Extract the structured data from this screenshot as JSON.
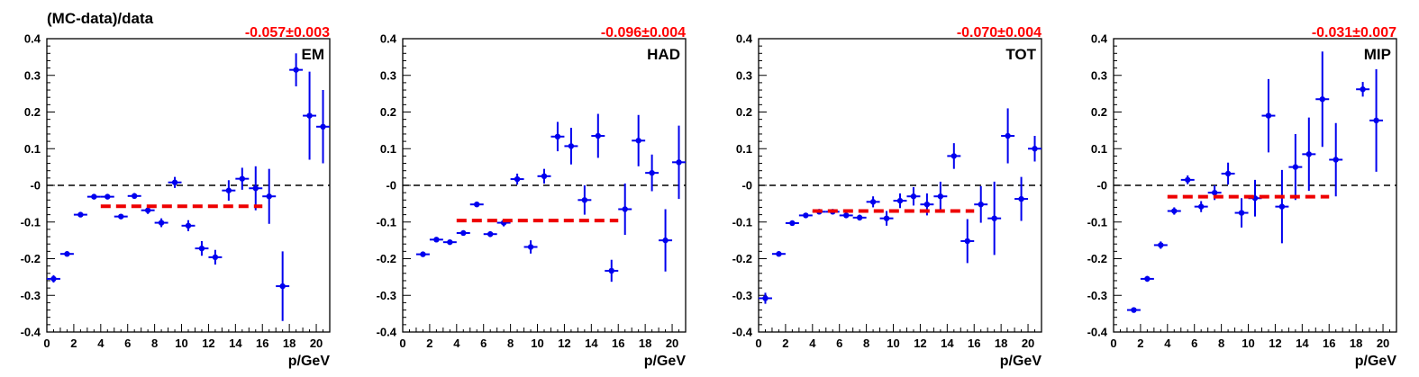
{
  "figure": {
    "ylabel": "(MC-data)/data"
  },
  "colors": {
    "points": "#0000ee",
    "fit": "#ee0000",
    "fit_label": "#ff0000",
    "zero_line": "#000000"
  },
  "chart_data": [
    {
      "type": "scatter",
      "label": "EM",
      "fit_text": "-0.057±0.003",
      "fit": {
        "value": -0.057,
        "x_from": 4,
        "x_to": 16
      },
      "xlabel": "p/GeV",
      "xlim": [
        0,
        21
      ],
      "ylim": [
        -0.4,
        0.4
      ],
      "xticks": [
        "0",
        "2",
        "4",
        "6",
        "8",
        "10",
        "12",
        "14",
        "16",
        "18",
        "20"
      ],
      "yticks": [
        "-0.4",
        "-0.3",
        "-0.2",
        "-0.1",
        "-0",
        "0.1",
        "0.2",
        "0.3",
        "0.4"
      ],
      "points": [
        {
          "x": 0.5,
          "y": -0.255,
          "ey": 0.01
        },
        {
          "x": 1.5,
          "y": -0.187,
          "ey": 0.006
        },
        {
          "x": 2.5,
          "y": -0.08,
          "ey": 0.006
        },
        {
          "x": 3.5,
          "y": -0.031,
          "ey": 0.006
        },
        {
          "x": 4.5,
          "y": -0.031,
          "ey": 0.006
        },
        {
          "x": 5.5,
          "y": -0.085,
          "ey": 0.006
        },
        {
          "x": 6.5,
          "y": -0.029,
          "ey": 0.008
        },
        {
          "x": 7.5,
          "y": -0.068,
          "ey": 0.01
        },
        {
          "x": 8.5,
          "y": -0.102,
          "ey": 0.012
        },
        {
          "x": 9.5,
          "y": 0.008,
          "ey": 0.015
        },
        {
          "x": 10.5,
          "y": -0.11,
          "ey": 0.015
        },
        {
          "x": 11.5,
          "y": -0.172,
          "ey": 0.02
        },
        {
          "x": 12.5,
          "y": -0.196,
          "ey": 0.02
        },
        {
          "x": 13.5,
          "y": -0.014,
          "ey": 0.028
        },
        {
          "x": 14.5,
          "y": 0.018,
          "ey": 0.03
        },
        {
          "x": 15.5,
          "y": -0.008,
          "ey": 0.06
        },
        {
          "x": 16.5,
          "y": -0.03,
          "ey": 0.075
        },
        {
          "x": 17.5,
          "y": -0.275,
          "ey": 0.095
        },
        {
          "x": 18.5,
          "y": 0.315,
          "ey": 0.045
        },
        {
          "x": 19.5,
          "y": 0.19,
          "ey": 0.12
        },
        {
          "x": 20.5,
          "y": 0.16,
          "ey": 0.1
        }
      ]
    },
    {
      "type": "scatter",
      "label": "HAD",
      "fit_text": "-0.096±0.004",
      "fit": {
        "value": -0.096,
        "x_from": 4,
        "x_to": 16
      },
      "xlabel": "p/GeV",
      "xlim": [
        0,
        21
      ],
      "ylim": [
        -0.4,
        0.4
      ],
      "xticks": [
        "0",
        "2",
        "4",
        "6",
        "8",
        "10",
        "12",
        "14",
        "16",
        "18",
        "20"
      ],
      "yticks": [
        "-0.4",
        "-0.3",
        "-0.2",
        "-0.1",
        "-0",
        "0.1",
        "0.2",
        "0.3",
        "0.4"
      ],
      "points": [
        {
          "x": 1.5,
          "y": -0.188,
          "ey": 0.006
        },
        {
          "x": 2.5,
          "y": -0.148,
          "ey": 0.006
        },
        {
          "x": 3.5,
          "y": -0.155,
          "ey": 0.006
        },
        {
          "x": 4.5,
          "y": -0.13,
          "ey": 0.006
        },
        {
          "x": 5.5,
          "y": -0.052,
          "ey": 0.007
        },
        {
          "x": 6.5,
          "y": -0.133,
          "ey": 0.008
        },
        {
          "x": 7.5,
          "y": -0.102,
          "ey": 0.01
        },
        {
          "x": 8.5,
          "y": 0.017,
          "ey": 0.015
        },
        {
          "x": 9.5,
          "y": -0.168,
          "ey": 0.018
        },
        {
          "x": 10.5,
          "y": 0.025,
          "ey": 0.02
        },
        {
          "x": 11.5,
          "y": 0.133,
          "ey": 0.04
        },
        {
          "x": 12.5,
          "y": 0.107,
          "ey": 0.05
        },
        {
          "x": 13.5,
          "y": -0.04,
          "ey": 0.04
        },
        {
          "x": 14.5,
          "y": 0.135,
          "ey": 0.06
        },
        {
          "x": 15.5,
          "y": -0.233,
          "ey": 0.03
        },
        {
          "x": 16.5,
          "y": -0.065,
          "ey": 0.07
        },
        {
          "x": 17.5,
          "y": 0.122,
          "ey": 0.07
        },
        {
          "x": 18.5,
          "y": 0.034,
          "ey": 0.05
        },
        {
          "x": 19.5,
          "y": -0.15,
          "ey": 0.085
        },
        {
          "x": 20.5,
          "y": 0.063,
          "ey": 0.1
        }
      ]
    },
    {
      "type": "scatter",
      "label": "TOT",
      "fit_text": "-0.070±0.004",
      "fit": {
        "value": -0.07,
        "x_from": 4,
        "x_to": 16
      },
      "xlabel": "p/GeV",
      "xlim": [
        0,
        21
      ],
      "ylim": [
        -0.4,
        0.4
      ],
      "xticks": [
        "0",
        "2",
        "4",
        "6",
        "8",
        "10",
        "12",
        "14",
        "16",
        "18",
        "20"
      ],
      "yticks": [
        "-0.4",
        "-0.3",
        "-0.2",
        "-0.1",
        "-0",
        "0.1",
        "0.2",
        "0.3",
        "0.4"
      ],
      "points": [
        {
          "x": 0.5,
          "y": -0.308,
          "ey": 0.015
        },
        {
          "x": 1.5,
          "y": -0.187,
          "ey": 0.006
        },
        {
          "x": 2.5,
          "y": -0.103,
          "ey": 0.006
        },
        {
          "x": 3.5,
          "y": -0.082,
          "ey": 0.006
        },
        {
          "x": 4.5,
          "y": -0.072,
          "ey": 0.006
        },
        {
          "x": 5.5,
          "y": -0.072,
          "ey": 0.006
        },
        {
          "x": 6.5,
          "y": -0.082,
          "ey": 0.007
        },
        {
          "x": 7.5,
          "y": -0.088,
          "ey": 0.008
        },
        {
          "x": 8.5,
          "y": -0.045,
          "ey": 0.015
        },
        {
          "x": 9.5,
          "y": -0.09,
          "ey": 0.02
        },
        {
          "x": 10.5,
          "y": -0.042,
          "ey": 0.02
        },
        {
          "x": 11.5,
          "y": -0.03,
          "ey": 0.025
        },
        {
          "x": 12.5,
          "y": -0.052,
          "ey": 0.03
        },
        {
          "x": 13.5,
          "y": -0.03,
          "ey": 0.04
        },
        {
          "x": 14.5,
          "y": 0.08,
          "ey": 0.035
        },
        {
          "x": 15.5,
          "y": -0.152,
          "ey": 0.06
        },
        {
          "x": 16.5,
          "y": -0.052,
          "ey": 0.05
        },
        {
          "x": 17.5,
          "y": -0.09,
          "ey": 0.1
        },
        {
          "x": 18.5,
          "y": 0.135,
          "ey": 0.075
        },
        {
          "x": 19.5,
          "y": -0.037,
          "ey": 0.06
        },
        {
          "x": 20.5,
          "y": 0.1,
          "ey": 0.035
        }
      ]
    },
    {
      "type": "scatter",
      "label": "MIP",
      "fit_text": "-0.031±0.007",
      "fit": {
        "value": -0.031,
        "x_from": 4,
        "x_to": 16
      },
      "xlabel": "p/GeV",
      "xlim": [
        0,
        21
      ],
      "ylim": [
        -0.4,
        0.4
      ],
      "xticks": [
        "0",
        "2",
        "4",
        "6",
        "8",
        "10",
        "12",
        "14",
        "16",
        "18",
        "20"
      ],
      "yticks": [
        "-0.4",
        "-0.3",
        "-0.2",
        "-0.1",
        "-0",
        "0.1",
        "0.2",
        "0.3",
        "0.4"
      ],
      "points": [
        {
          "x": 1.5,
          "y": -0.34,
          "ey": 0.006
        },
        {
          "x": 2.5,
          "y": -0.255,
          "ey": 0.008
        },
        {
          "x": 3.5,
          "y": -0.163,
          "ey": 0.01
        },
        {
          "x": 4.5,
          "y": -0.07,
          "ey": 0.01
        },
        {
          "x": 5.5,
          "y": 0.015,
          "ey": 0.012
        },
        {
          "x": 6.5,
          "y": -0.058,
          "ey": 0.015
        },
        {
          "x": 7.5,
          "y": -0.02,
          "ey": 0.02
        },
        {
          "x": 8.5,
          "y": 0.032,
          "ey": 0.03
        },
        {
          "x": 9.5,
          "y": -0.075,
          "ey": 0.04
        },
        {
          "x": 10.5,
          "y": -0.035,
          "ey": 0.05
        },
        {
          "x": 11.5,
          "y": 0.19,
          "ey": 0.1
        },
        {
          "x": 12.5,
          "y": -0.058,
          "ey": 0.1
        },
        {
          "x": 13.5,
          "y": 0.05,
          "ey": 0.09
        },
        {
          "x": 14.5,
          "y": 0.085,
          "ey": 0.1
        },
        {
          "x": 15.5,
          "y": 0.235,
          "ey": 0.13
        },
        {
          "x": 16.5,
          "y": 0.07,
          "ey": 0.1
        },
        {
          "x": 18.5,
          "y": 0.262,
          "ey": 0.02
        },
        {
          "x": 19.5,
          "y": 0.177,
          "ey": 0.14
        }
      ]
    }
  ]
}
